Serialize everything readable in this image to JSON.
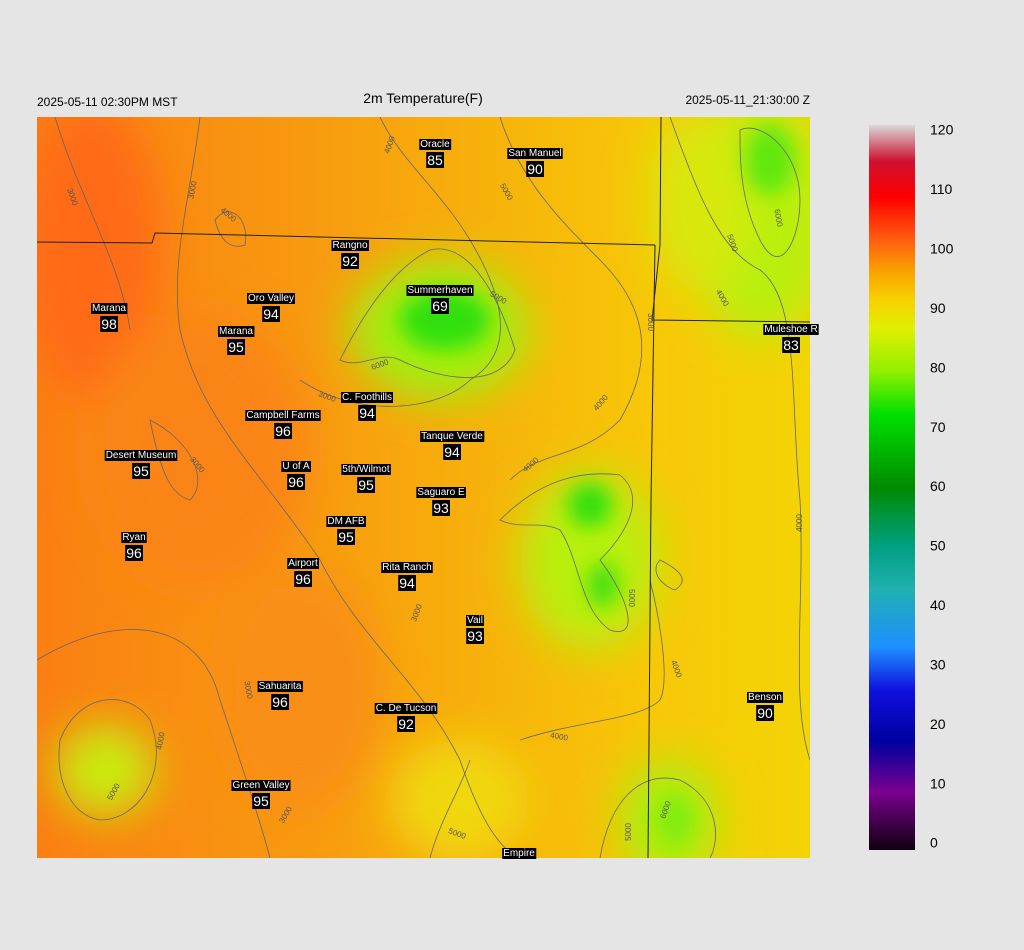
{
  "header": {
    "left": "2025-05-11 02:30PM MST",
    "title": "2m Temperature(F)",
    "right": "2025-05-11_21:30:00 Z"
  },
  "stations": [
    {
      "name": "Oracle",
      "value": 85
    },
    {
      "name": "San Manuel",
      "value": 90
    },
    {
      "name": "Rangno",
      "value": 92
    },
    {
      "name": "Summerhaven",
      "value": 69
    },
    {
      "name": "Marana",
      "value": 98
    },
    {
      "name": "Oro Valley",
      "value": 94
    },
    {
      "name": "Marana",
      "value": 95
    },
    {
      "name": "Muleshoe R",
      "value": 83
    },
    {
      "name": "C. Foothills",
      "value": 94
    },
    {
      "name": "Campbell Farms",
      "value": 96
    },
    {
      "name": "Tanque Verde",
      "value": 94
    },
    {
      "name": "Desert Museum",
      "value": 95
    },
    {
      "name": "U of A",
      "value": 96
    },
    {
      "name": "5th/Wilmot",
      "value": 95
    },
    {
      "name": "Saguaro E",
      "value": 93
    },
    {
      "name": "DM AFB",
      "value": 95
    },
    {
      "name": "Ryan",
      "value": 96
    },
    {
      "name": "Airport",
      "value": 96
    },
    {
      "name": "Rita Ranch",
      "value": 94
    },
    {
      "name": "Vail",
      "value": 93
    },
    {
      "name": "Benson",
      "value": 90
    },
    {
      "name": "Sahuarita",
      "value": 96
    },
    {
      "name": "C. De Tucson",
      "value": 92
    },
    {
      "name": "Green Valley",
      "value": 95
    },
    {
      "name": "Empire"
    }
  ],
  "contour_labels": [
    4000,
    3000,
    3000,
    4000,
    5000,
    6000,
    5000,
    4000,
    5000,
    3000,
    6000,
    3000,
    4000,
    3000,
    4000,
    4000,
    5000,
    3000,
    4000,
    3000,
    4000,
    4000,
    5000,
    3000,
    5000,
    6000,
    5000
  ],
  "colorbar": {
    "ticks": [
      0,
      10,
      20,
      30,
      40,
      50,
      60,
      70,
      80,
      90,
      100,
      110,
      120
    ]
  }
}
